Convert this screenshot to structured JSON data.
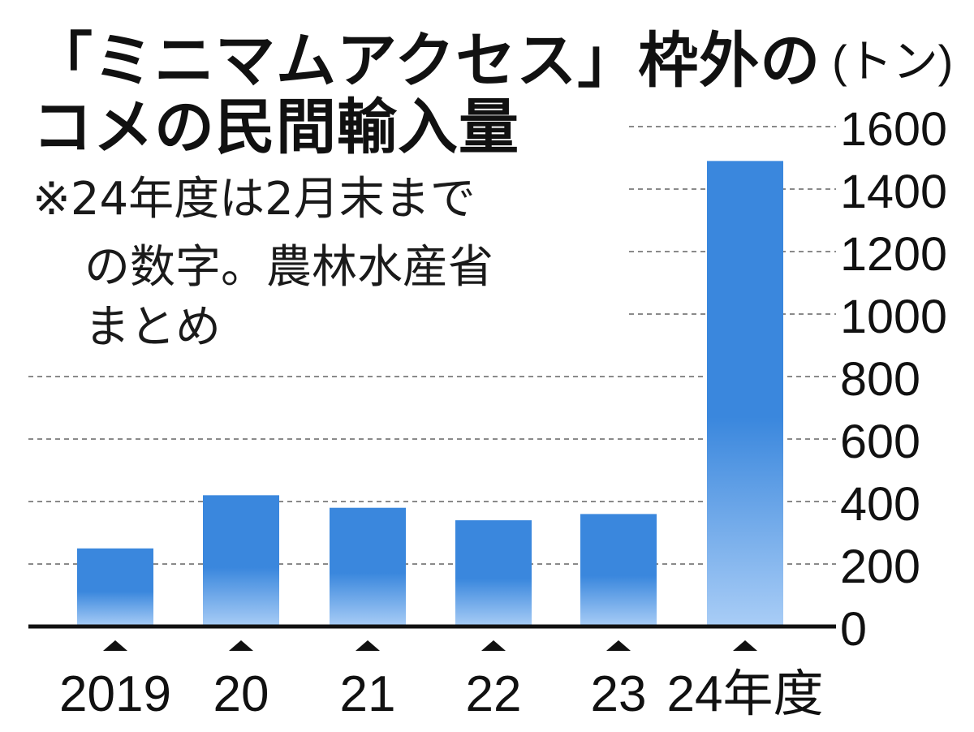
{
  "title_line1": "「ミニマムアクセス」枠外の",
  "title_line2": "コメの民間輸入量",
  "note_line1": "※24年度は2月末まで",
  "note_line2": "の数字。農林水産省",
  "note_line3": "まとめ",
  "unit": "(トン)",
  "colors": {
    "bar_top": "#3a87dd",
    "bar_bottom": "#a9cdf6",
    "axis": "#111111",
    "grid": "#8a8a8a"
  },
  "chart_data": {
    "type": "bar",
    "categories": [
      "2019",
      "20",
      "21",
      "22",
      "23",
      "24年度"
    ],
    "values": [
      250,
      420,
      380,
      340,
      360,
      1490
    ],
    "yticks": [
      0,
      200,
      400,
      600,
      800,
      1000,
      1200,
      1400,
      1600
    ],
    "ylim": [
      0,
      1600
    ],
    "ylabel": "(トン)",
    "grid": true
  }
}
